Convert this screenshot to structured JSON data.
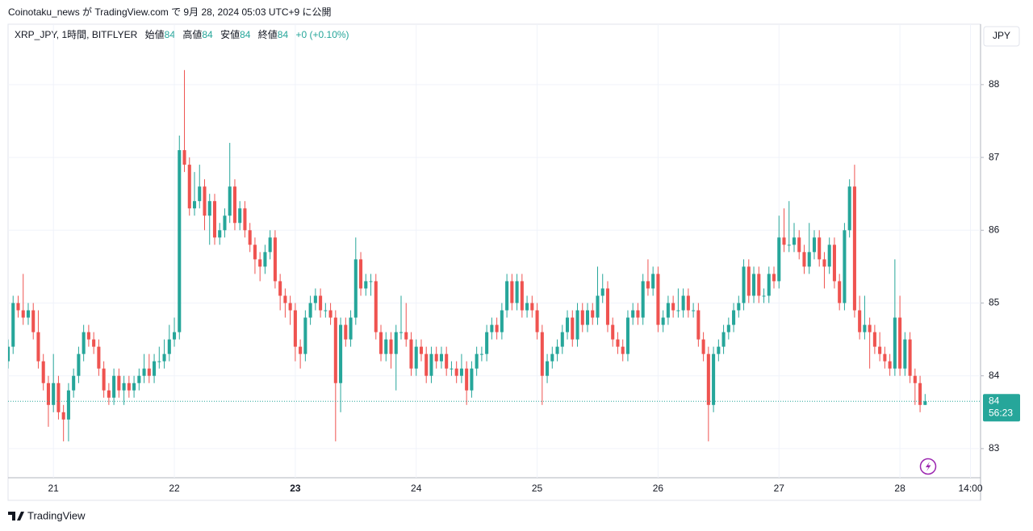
{
  "header": {
    "published": "Coinotaku_news が TradingView.com で 9月 28, 2024 05:03 UTC+9 に公開"
  },
  "legend": {
    "symbol": "XRP_JPY, 1時間, BITFLYER",
    "open_label": "始値",
    "open": 84,
    "high_label": "高値",
    "high": 84,
    "low_label": "安値",
    "low": 84,
    "close_label": "終値",
    "close": 84,
    "change": "+0 (+0.10%)"
  },
  "currency": "JPY",
  "countdown": "56:23",
  "footer": {
    "brand": "TradingView"
  },
  "chart_data": {
    "type": "candlestick",
    "up_color": "#26a69a",
    "down_color": "#ef5350",
    "grid": true,
    "xlim": [
      0,
      193
    ],
    "ylim": [
      82.6,
      88.83
    ],
    "yticks": [
      83,
      84,
      85,
      86,
      87,
      88
    ],
    "xticks": [
      {
        "value": 9,
        "label": "21"
      },
      {
        "value": 33,
        "label": "22"
      },
      {
        "value": 57,
        "label": "23"
      },
      {
        "value": 81,
        "label": "24"
      },
      {
        "value": 105,
        "label": "25"
      },
      {
        "value": 129,
        "label": "26"
      },
      {
        "value": 153,
        "label": "27"
      },
      {
        "value": 177,
        "label": "28"
      },
      {
        "value": 191,
        "label": "14:00"
      }
    ],
    "last_price": {
      "value": 83.65,
      "label": "84"
    },
    "ohlc": [
      [
        84.2,
        84.5,
        84.1,
        84.4
      ],
      [
        84.4,
        85.1,
        84.3,
        85.0
      ],
      [
        85.0,
        85.1,
        84.8,
        84.9
      ],
      [
        84.9,
        85.4,
        84.7,
        84.8
      ],
      [
        84.8,
        85.0,
        84.7,
        84.9
      ],
      [
        84.9,
        85.0,
        84.5,
        84.6
      ],
      [
        84.6,
        84.9,
        84.1,
        84.2
      ],
      [
        84.2,
        84.3,
        83.8,
        83.9
      ],
      [
        83.9,
        84.0,
        83.3,
        83.6
      ],
      [
        83.6,
        84.3,
        83.5,
        83.9
      ],
      [
        83.9,
        84.0,
        83.4,
        83.5
      ],
      [
        83.5,
        83.6,
        83.1,
        83.4
      ],
      [
        83.4,
        83.9,
        83.1,
        83.8
      ],
      [
        83.8,
        84.1,
        83.7,
        84.0
      ],
      [
        84.0,
        84.4,
        83.9,
        84.3
      ],
      [
        84.3,
        84.7,
        84.2,
        84.6
      ],
      [
        84.6,
        84.7,
        84.4,
        84.5
      ],
      [
        84.5,
        84.6,
        84.3,
        84.4
      ],
      [
        84.4,
        84.5,
        84.0,
        84.1
      ],
      [
        84.1,
        84.2,
        83.7,
        83.8
      ],
      [
        83.8,
        83.9,
        83.6,
        83.7
      ],
      [
        83.7,
        84.1,
        83.6,
        84.0
      ],
      [
        84.0,
        84.1,
        83.7,
        83.8
      ],
      [
        83.8,
        84.0,
        83.6,
        83.9
      ],
      [
        83.9,
        84.0,
        83.7,
        83.8
      ],
      [
        83.8,
        84.0,
        83.7,
        83.9
      ],
      [
        83.9,
        84.1,
        83.8,
        84.0
      ],
      [
        84.0,
        84.3,
        83.9,
        84.1
      ],
      [
        84.1,
        84.3,
        83.9,
        84.0
      ],
      [
        84.0,
        84.3,
        83.9,
        84.2
      ],
      [
        84.2,
        84.4,
        84.1,
        84.2
      ],
      [
        84.2,
        84.5,
        84.1,
        84.3
      ],
      [
        84.3,
        84.7,
        84.2,
        84.5
      ],
      [
        84.5,
        84.8,
        84.4,
        84.6
      ],
      [
        84.6,
        87.3,
        84.5,
        87.1
      ],
      [
        87.1,
        88.2,
        86.8,
        86.9
      ],
      [
        86.9,
        87.0,
        86.2,
        86.3
      ],
      [
        86.3,
        86.8,
        86.2,
        86.4
      ],
      [
        86.4,
        86.9,
        86.3,
        86.6
      ],
      [
        86.6,
        86.7,
        86.0,
        86.2
      ],
      [
        86.2,
        86.5,
        85.8,
        86.4
      ],
      [
        86.4,
        86.5,
        85.8,
        85.9
      ],
      [
        85.9,
        86.1,
        85.8,
        86.0
      ],
      [
        86.0,
        86.3,
        85.9,
        86.2
      ],
      [
        86.2,
        87.2,
        86.1,
        86.6
      ],
      [
        86.6,
        86.7,
        86.0,
        86.1
      ],
      [
        86.1,
        86.4,
        86.0,
        86.3
      ],
      [
        86.3,
        86.4,
        85.9,
        86.0
      ],
      [
        86.0,
        86.1,
        85.7,
        85.8
      ],
      [
        85.8,
        85.9,
        85.4,
        85.6
      ],
      [
        85.6,
        85.7,
        85.3,
        85.5
      ],
      [
        85.5,
        85.8,
        85.4,
        85.7
      ],
      [
        85.7,
        86.0,
        85.6,
        85.9
      ],
      [
        85.9,
        86.0,
        85.2,
        85.3
      ],
      [
        85.3,
        85.4,
        84.9,
        85.1
      ],
      [
        85.1,
        85.2,
        84.8,
        85.0
      ],
      [
        85.0,
        85.1,
        84.7,
        84.9
      ],
      [
        84.9,
        85.0,
        84.2,
        84.4
      ],
      [
        84.4,
        84.5,
        84.1,
        84.3
      ],
      [
        84.3,
        84.9,
        84.2,
        84.8
      ],
      [
        84.8,
        85.1,
        84.7,
        85.0
      ],
      [
        85.0,
        85.2,
        84.9,
        85.1
      ],
      [
        85.1,
        85.2,
        84.8,
        84.9
      ],
      [
        84.9,
        85.0,
        84.8,
        84.9
      ],
      [
        84.9,
        85.0,
        84.7,
        84.8
      ],
      [
        84.8,
        84.9,
        83.1,
        83.9
      ],
      [
        83.9,
        84.8,
        83.5,
        84.7
      ],
      [
        84.7,
        84.8,
        84.4,
        84.5
      ],
      [
        84.5,
        84.9,
        84.4,
        84.8
      ],
      [
        84.8,
        85.9,
        84.7,
        85.6
      ],
      [
        85.6,
        85.7,
        85.1,
        85.2
      ],
      [
        85.2,
        85.4,
        85.1,
        85.3
      ],
      [
        85.3,
        85.4,
        85.1,
        85.3
      ],
      [
        85.3,
        85.4,
        84.5,
        84.6
      ],
      [
        84.6,
        84.7,
        84.2,
        84.3
      ],
      [
        84.3,
        84.6,
        84.2,
        84.5
      ],
      [
        84.5,
        84.6,
        84.1,
        84.3
      ],
      [
        84.3,
        84.7,
        83.8,
        84.6
      ],
      [
        84.6,
        85.1,
        84.5,
        84.6
      ],
      [
        84.6,
        85.0,
        84.4,
        84.5
      ],
      [
        84.5,
        84.6,
        84.0,
        84.1
      ],
      [
        84.1,
        84.5,
        84.0,
        84.4
      ],
      [
        84.4,
        84.5,
        84.2,
        84.3
      ],
      [
        84.3,
        84.4,
        83.9,
        84.0
      ],
      [
        84.0,
        84.4,
        83.9,
        84.3
      ],
      [
        84.3,
        84.4,
        84.1,
        84.2
      ],
      [
        84.2,
        84.4,
        84.1,
        84.3
      ],
      [
        84.3,
        84.4,
        84.0,
        84.1
      ],
      [
        84.1,
        84.2,
        84.0,
        84.1
      ],
      [
        84.1,
        84.2,
        83.9,
        84.0
      ],
      [
        84.0,
        84.3,
        83.9,
        84.1
      ],
      [
        84.1,
        84.2,
        83.6,
        83.8
      ],
      [
        83.8,
        84.2,
        83.7,
        84.1
      ],
      [
        84.1,
        84.4,
        84.0,
        84.3
      ],
      [
        84.3,
        84.4,
        84.2,
        84.3
      ],
      [
        84.3,
        84.7,
        84.2,
        84.6
      ],
      [
        84.6,
        84.8,
        84.5,
        84.7
      ],
      [
        84.7,
        84.8,
        84.5,
        84.6
      ],
      [
        84.6,
        85.0,
        84.5,
        84.9
      ],
      [
        84.9,
        85.4,
        84.8,
        85.3
      ],
      [
        85.3,
        85.4,
        84.9,
        85.0
      ],
      [
        85.0,
        85.4,
        84.9,
        85.3
      ],
      [
        85.3,
        85.4,
        84.8,
        84.9
      ],
      [
        84.9,
        85.1,
        84.8,
        85.0
      ],
      [
        85.0,
        85.1,
        84.8,
        84.9
      ],
      [
        84.9,
        85.0,
        84.5,
        84.6
      ],
      [
        84.6,
        84.7,
        83.6,
        84.0
      ],
      [
        84.0,
        84.3,
        83.9,
        84.2
      ],
      [
        84.2,
        84.4,
        84.1,
        84.3
      ],
      [
        84.3,
        84.5,
        84.2,
        84.4
      ],
      [
        84.4,
        84.7,
        84.3,
        84.6
      ],
      [
        84.6,
        84.9,
        84.5,
        84.8
      ],
      [
        84.8,
        84.9,
        84.4,
        84.5
      ],
      [
        84.5,
        85.0,
        84.4,
        84.9
      ],
      [
        84.9,
        85.0,
        84.6,
        84.7
      ],
      [
        84.7,
        85.0,
        84.6,
        84.9
      ],
      [
        84.9,
        85.0,
        84.7,
        84.8
      ],
      [
        84.8,
        85.5,
        84.7,
        85.1
      ],
      [
        85.1,
        85.4,
        85.0,
        85.2
      ],
      [
        85.2,
        85.3,
        84.6,
        84.7
      ],
      [
        84.7,
        84.8,
        84.4,
        84.5
      ],
      [
        84.5,
        84.6,
        84.3,
        84.4
      ],
      [
        84.4,
        84.5,
        84.2,
        84.3
      ],
      [
        84.3,
        84.9,
        84.2,
        84.8
      ],
      [
        84.8,
        85.0,
        84.7,
        84.9
      ],
      [
        84.9,
        85.0,
        84.7,
        84.8
      ],
      [
        84.8,
        85.4,
        84.7,
        85.3
      ],
      [
        85.3,
        85.6,
        85.1,
        85.2
      ],
      [
        85.2,
        85.5,
        85.1,
        85.4
      ],
      [
        85.4,
        85.5,
        84.6,
        84.7
      ],
      [
        84.7,
        84.9,
        84.6,
        84.8
      ],
      [
        84.8,
        85.1,
        84.7,
        85.0
      ],
      [
        85.0,
        85.1,
        84.8,
        84.9
      ],
      [
        84.9,
        85.2,
        84.8,
        84.9
      ],
      [
        84.9,
        85.2,
        84.8,
        85.1
      ],
      [
        85.1,
        85.2,
        84.8,
        84.9
      ],
      [
        84.9,
        85.0,
        84.8,
        84.9
      ],
      [
        84.9,
        85.0,
        84.4,
        84.5
      ],
      [
        84.5,
        84.6,
        84.2,
        84.3
      ],
      [
        84.3,
        84.4,
        83.1,
        83.6
      ],
      [
        83.6,
        84.4,
        83.5,
        84.3
      ],
      [
        84.3,
        84.5,
        84.2,
        84.4
      ],
      [
        84.4,
        84.7,
        84.3,
        84.6
      ],
      [
        84.6,
        84.8,
        84.5,
        84.7
      ],
      [
        84.7,
        85.0,
        84.6,
        84.9
      ],
      [
        84.9,
        85.1,
        84.8,
        85.0
      ],
      [
        85.0,
        85.6,
        84.9,
        85.5
      ],
      [
        85.5,
        85.6,
        85.0,
        85.1
      ],
      [
        85.1,
        85.5,
        85.0,
        85.4
      ],
      [
        85.4,
        85.5,
        85.0,
        85.1
      ],
      [
        85.1,
        85.2,
        85.0,
        85.1
      ],
      [
        85.1,
        85.5,
        85.0,
        85.4
      ],
      [
        85.4,
        85.5,
        85.2,
        85.3
      ],
      [
        85.3,
        86.2,
        85.2,
        85.9
      ],
      [
        85.9,
        86.3,
        85.7,
        85.8
      ],
      [
        85.8,
        86.4,
        85.7,
        85.8
      ],
      [
        85.8,
        86.1,
        85.7,
        85.9
      ],
      [
        85.9,
        86.0,
        85.6,
        85.7
      ],
      [
        85.7,
        85.8,
        85.4,
        85.5
      ],
      [
        85.5,
        86.1,
        85.4,
        85.7
      ],
      [
        85.7,
        86.0,
        85.6,
        85.9
      ],
      [
        85.9,
        86.0,
        85.5,
        85.6
      ],
      [
        85.6,
        85.7,
        85.2,
        85.5
      ],
      [
        85.5,
        85.9,
        85.4,
        85.8
      ],
      [
        85.8,
        85.9,
        85.2,
        85.3
      ],
      [
        85.3,
        85.4,
        84.9,
        85.0
      ],
      [
        85.0,
        86.1,
        84.9,
        86.0
      ],
      [
        86.0,
        86.7,
        85.9,
        86.6
      ],
      [
        86.6,
        86.9,
        84.8,
        84.9
      ],
      [
        84.9,
        85.1,
        84.5,
        84.6
      ],
      [
        84.6,
        85.1,
        84.5,
        84.7
      ],
      [
        84.7,
        84.8,
        84.1,
        84.6
      ],
      [
        84.6,
        84.7,
        84.3,
        84.4
      ],
      [
        84.4,
        84.6,
        84.2,
        84.3
      ],
      [
        84.3,
        84.4,
        84.1,
        84.2
      ],
      [
        84.2,
        84.3,
        84.0,
        84.1
      ],
      [
        84.1,
        85.6,
        84.0,
        84.8
      ],
      [
        84.8,
        85.1,
        84.0,
        84.1
      ],
      [
        84.1,
        84.6,
        84.0,
        84.5
      ],
      [
        84.5,
        84.6,
        83.9,
        84.0
      ],
      [
        84.0,
        84.1,
        83.6,
        83.9
      ],
      [
        83.9,
        84.0,
        83.5,
        83.6
      ],
      [
        83.6,
        83.75,
        83.6,
        83.65
      ]
    ]
  }
}
